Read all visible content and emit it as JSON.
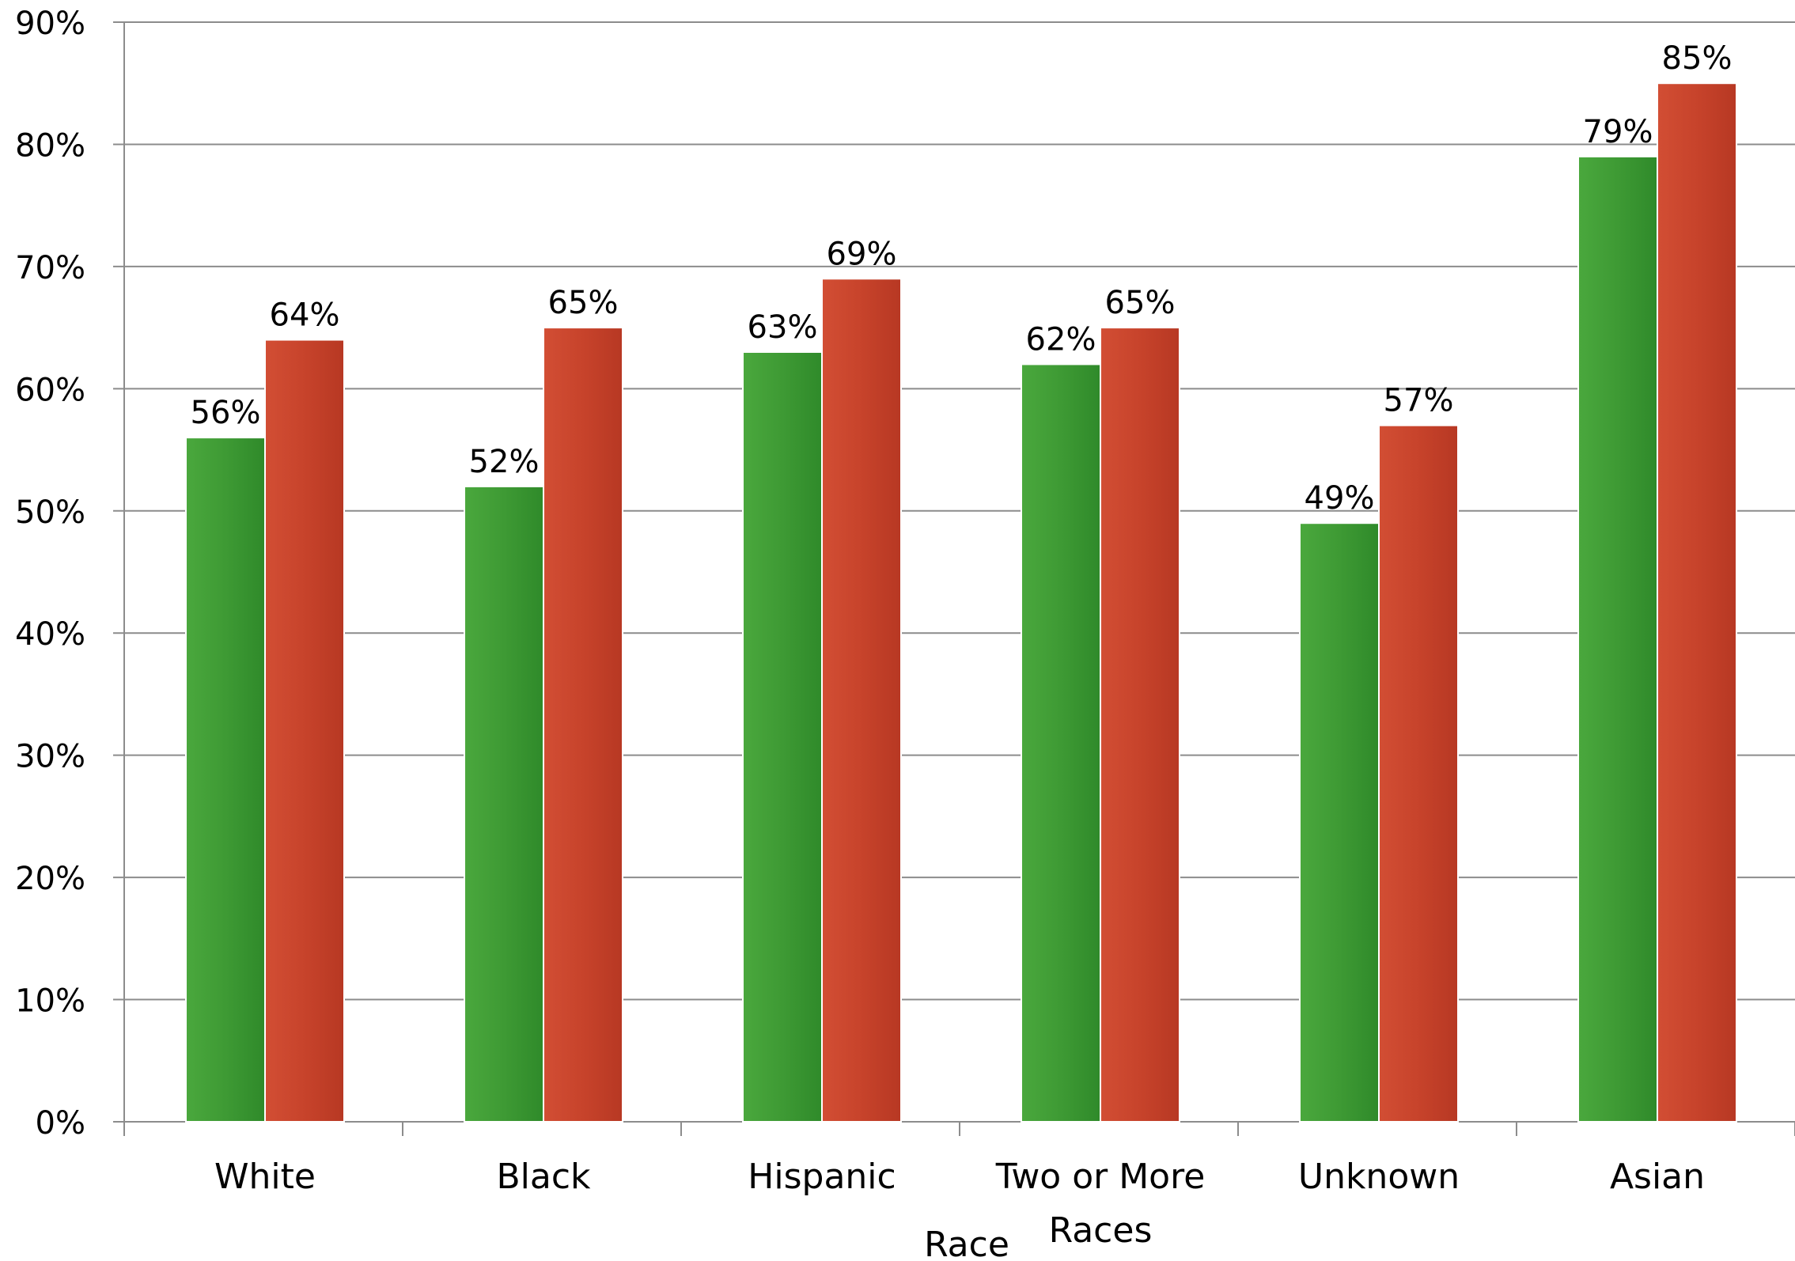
{
  "chart_data": {
    "type": "bar",
    "title": "",
    "xlabel": "Race",
    "ylabel": "",
    "categories": [
      [
        "White"
      ],
      [
        "Black"
      ],
      [
        "Hispanic"
      ],
      [
        "Two or More",
        "Races"
      ],
      [
        "Unknown"
      ],
      [
        "Asian"
      ]
    ],
    "series": [
      {
        "color": "#3f9a35",
        "values": [
          56,
          52,
          63,
          62,
          49,
          79
        ],
        "labels": [
          "56%",
          "52%",
          "63%",
          "62%",
          "49%",
          "79%"
        ]
      },
      {
        "color": "#c9452c",
        "values": [
          64,
          65,
          69,
          65,
          57,
          85
        ],
        "labels": [
          "64%",
          "65%",
          "69%",
          "65%",
          "57%",
          "85%"
        ]
      }
    ],
    "ylim": [
      0,
      90
    ],
    "yticks": [
      0,
      10,
      20,
      30,
      40,
      50,
      60,
      70,
      80,
      90
    ],
    "ytick_labels": [
      "0%",
      "10%",
      "20%",
      "30%",
      "40%",
      "50%",
      "60%",
      "70%",
      "80%",
      "90%"
    ],
    "grid": true,
    "legend": "none"
  }
}
